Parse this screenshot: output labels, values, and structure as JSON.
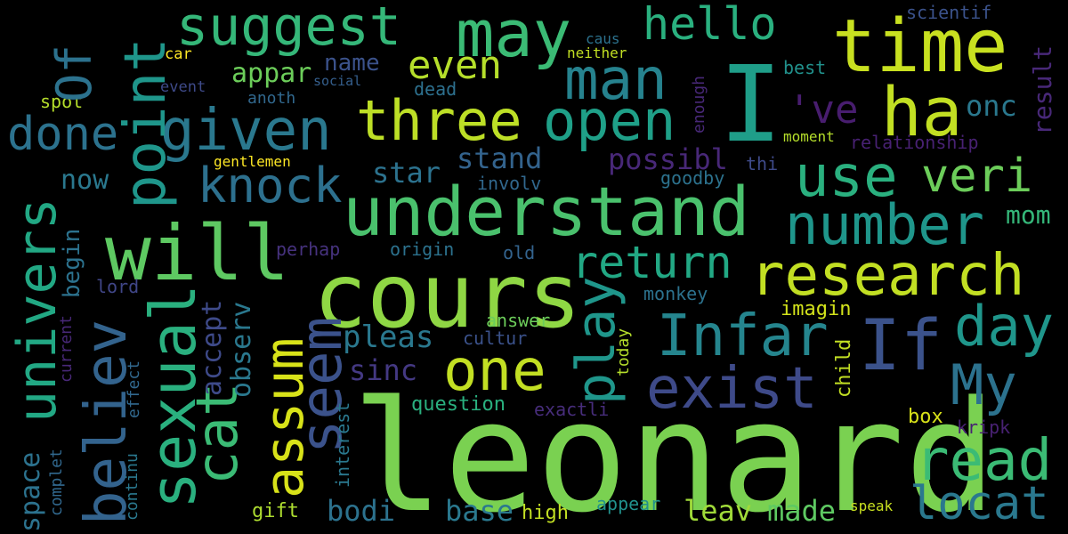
{
  "words": [
    {
      "id": "leonard",
      "text": "leonard",
      "color": "#7ad151"
    },
    {
      "id": "cours",
      "text": "cours",
      "color": "#8fd744"
    },
    {
      "id": "understand",
      "text": "understand",
      "color": "#4ac16d"
    },
    {
      "id": "will",
      "text": "will",
      "color": "#5ec962"
    },
    {
      "id": "I",
      "text": "I",
      "color": "#1f9e89"
    },
    {
      "id": "time",
      "text": "time",
      "color": "#c8e020"
    },
    {
      "id": "ha",
      "text": "ha",
      "color": "#c2df23"
    },
    {
      "id": "may",
      "text": "may",
      "color": "#3bbb75"
    },
    {
      "id": "suggest",
      "text": "suggest",
      "color": "#35b779"
    },
    {
      "id": "hello",
      "text": "hello",
      "color": "#2ab07f"
    },
    {
      "id": "man",
      "text": "man",
      "color": "#26828e"
    },
    {
      "id": "even",
      "text": "even",
      "color": "#b5de2b"
    },
    {
      "id": "three",
      "text": "three",
      "color": "#bddf26"
    },
    {
      "id": "open",
      "text": "open",
      "color": "#1fa088"
    },
    {
      "id": "given",
      "text": "given",
      "color": "#2a788e"
    },
    {
      "id": "done",
      "text": "done",
      "color": "#2c728e"
    },
    {
      "id": "appar",
      "text": "appar",
      "color": "#6ccd5a"
    },
    {
      "id": "car",
      "text": "car",
      "color": "#fde725"
    },
    {
      "id": "event",
      "text": "event",
      "color": "#3e4a89"
    },
    {
      "id": "name",
      "text": "name",
      "color": "#3b528b"
    },
    {
      "id": "anoth",
      "text": "anoth",
      "color": "#31688e"
    },
    {
      "id": "social",
      "text": "social",
      "color": "#355f8d"
    },
    {
      "id": "dead",
      "text": "dead",
      "color": "#2d708e"
    },
    {
      "id": "spot",
      "text": "spot",
      "color": "#b5de2b"
    },
    {
      "id": "caus",
      "text": "caus",
      "color": "#2c728e"
    },
    {
      "id": "neither",
      "text": "neither",
      "color": "#c2df23"
    },
    {
      "id": "scientif",
      "text": "scientif",
      "color": "#3b528b"
    },
    {
      "id": "best",
      "text": "best",
      "color": "#21918c"
    },
    {
      "id": "ve",
      "text": "'ve",
      "color": "#481d6f"
    },
    {
      "id": "onc",
      "text": "onc",
      "color": "#2a788e"
    },
    {
      "id": "moment",
      "text": "moment",
      "color": "#b5de2b"
    },
    {
      "id": "relationship",
      "text": "relationship",
      "color": "#482173"
    },
    {
      "id": "use",
      "text": "use",
      "color": "#2ab07f"
    },
    {
      "id": "veri",
      "text": "veri",
      "color": "#6ccd5a"
    },
    {
      "id": "thi",
      "text": "thi",
      "color": "#3e4a89"
    },
    {
      "id": "possibl",
      "text": "possibl",
      "color": "#482878"
    },
    {
      "id": "stand",
      "text": "stand",
      "color": "#33638d"
    },
    {
      "id": "star",
      "text": "star",
      "color": "#2c728e"
    },
    {
      "id": "gentlemen",
      "text": "gentlemen",
      "color": "#fde725"
    },
    {
      "id": "knock",
      "text": "knock",
      "color": "#2d708e"
    },
    {
      "id": "now",
      "text": "now",
      "color": "#2a788e"
    },
    {
      "id": "goodby",
      "text": "goodby",
      "color": "#2c728e"
    },
    {
      "id": "involv",
      "text": "involv",
      "color": "#31688e"
    },
    {
      "id": "number",
      "text": "number",
      "color": "#1f968b"
    },
    {
      "id": "mom",
      "text": "mom",
      "color": "#35b779"
    },
    {
      "id": "perhap",
      "text": "perhap",
      "color": "#46327e"
    },
    {
      "id": "origin",
      "text": "origin",
      "color": "#2c728e"
    },
    {
      "id": "old",
      "text": "old",
      "color": "#33638d"
    },
    {
      "id": "return",
      "text": "return",
      "color": "#22a884"
    },
    {
      "id": "research",
      "text": "research",
      "color": "#c2df23"
    },
    {
      "id": "lord",
      "text": "lord",
      "color": "#404688"
    },
    {
      "id": "monkey",
      "text": "monkey",
      "color": "#2c728e"
    },
    {
      "id": "imagin",
      "text": "imagin",
      "color": "#d2e21b"
    },
    {
      "id": "day",
      "text": "day",
      "color": "#1f968b"
    },
    {
      "id": "answer",
      "text": "answer",
      "color": "#6ccd5a"
    },
    {
      "id": "infar",
      "text": "Infar",
      "color": "#25858e"
    },
    {
      "id": "If",
      "text": "If",
      "color": "#3b528b"
    },
    {
      "id": "pleas",
      "text": "pleas",
      "color": "#2a788e"
    },
    {
      "id": "cultur",
      "text": "cultur",
      "color": "#3b528b"
    },
    {
      "id": "one",
      "text": "one",
      "color": "#c2df23"
    },
    {
      "id": "sinc",
      "text": "sinc",
      "color": "#443983"
    },
    {
      "id": "exist",
      "text": "exist",
      "color": "#3e4a89"
    },
    {
      "id": "My",
      "text": "My",
      "color": "#2c728e"
    },
    {
      "id": "question",
      "text": "question",
      "color": "#2ab07f"
    },
    {
      "id": "exactli",
      "text": "exactli",
      "color": "#472d7b"
    },
    {
      "id": "box",
      "text": "box",
      "color": "#d8e219"
    },
    {
      "id": "kripk",
      "text": "kripk",
      "color": "#482173"
    },
    {
      "id": "read",
      "text": "read",
      "color": "#3bbb75"
    },
    {
      "id": "locat",
      "text": "locat",
      "color": "#2a788e"
    },
    {
      "id": "appear",
      "text": "appear",
      "color": "#21918c"
    },
    {
      "id": "speak",
      "text": "speak",
      "color": "#c8e020"
    },
    {
      "id": "gift",
      "text": "gift",
      "color": "#addc30"
    },
    {
      "id": "bodi",
      "text": "bodi",
      "color": "#2c728e"
    },
    {
      "id": "base",
      "text": "base",
      "color": "#2a788e"
    },
    {
      "id": "high",
      "text": "high",
      "color": "#c2df23"
    },
    {
      "id": "leav",
      "text": "leav",
      "color": "#a0da39"
    },
    {
      "id": "made",
      "text": "made",
      "color": "#5ec962"
    },
    {
      "id": "of",
      "text": "Of",
      "color": "#2c728e"
    },
    {
      "id": "point",
      "text": "point",
      "color": "#1f968b"
    },
    {
      "id": "univers",
      "text": "univers",
      "color": "#22a884"
    },
    {
      "id": "begin",
      "text": "begin",
      "color": "#2c728e"
    },
    {
      "id": "believ",
      "text": "believ",
      "color": "#33638d"
    },
    {
      "id": "sexual",
      "text": "sexual",
      "color": "#2ab07f"
    },
    {
      "id": "cat",
      "text": "cat",
      "color": "#3bbb75"
    },
    {
      "id": "accept",
      "text": "accept",
      "color": "#3e4a89"
    },
    {
      "id": "observ",
      "text": "observ",
      "color": "#2a788e"
    },
    {
      "id": "assum",
      "text": "assum",
      "color": "#d8e219"
    },
    {
      "id": "seem",
      "text": "seem",
      "color": "#3b528b"
    },
    {
      "id": "play",
      "text": "play",
      "color": "#1f968b"
    },
    {
      "id": "enough",
      "text": "enough",
      "color": "#482878"
    },
    {
      "id": "result",
      "text": "result",
      "color": "#482878"
    },
    {
      "id": "today",
      "text": "today",
      "color": "#b5de2b"
    },
    {
      "id": "child",
      "text": "child",
      "color": "#c2df23"
    },
    {
      "id": "effect",
      "text": "effect",
      "color": "#31688e"
    },
    {
      "id": "current",
      "text": "current",
      "color": "#482878"
    },
    {
      "id": "continu",
      "text": "continu",
      "color": "#2a788e"
    },
    {
      "id": "space",
      "text": "space",
      "color": "#2c728e"
    },
    {
      "id": "complet",
      "text": "complet",
      "color": "#31688e"
    },
    {
      "id": "interest",
      "text": "interest",
      "color": "#2a788e"
    }
  ]
}
